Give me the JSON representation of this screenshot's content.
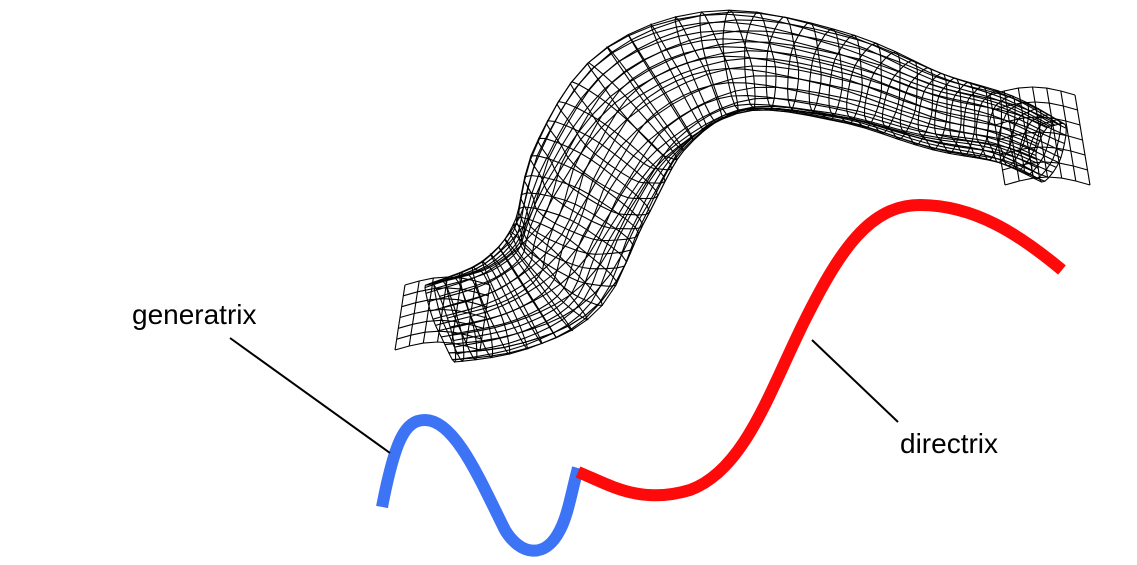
{
  "labels": {
    "generatrix": "generatrix",
    "directrix": "directrix"
  },
  "colors": {
    "generatrix": "#3d73f5",
    "directrix": "#ff0a0a",
    "mesh": "#000000",
    "background": "#ffffff"
  }
}
